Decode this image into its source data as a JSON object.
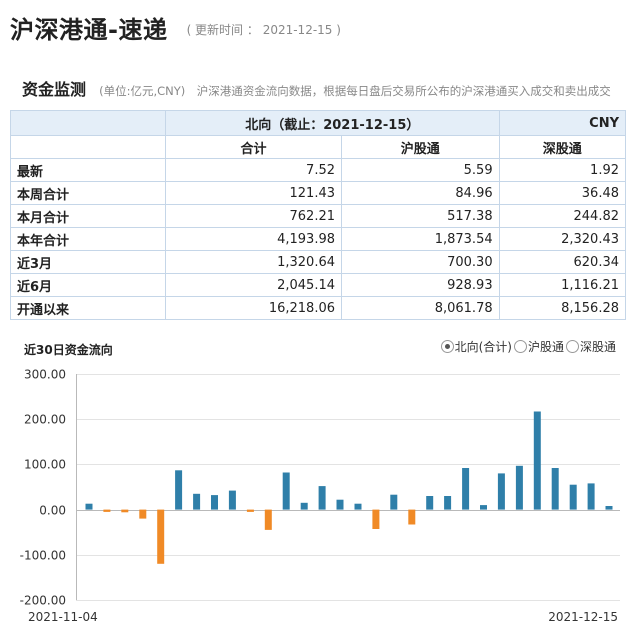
{
  "header": {
    "title": "沪深港通-速递",
    "update_label": "( 更新时间 ： 2021-12-15 )"
  },
  "section": {
    "title": "资金监测",
    "desc": "(单位:亿元,CNY)　沪深港通资金流向数据，根据每日盘后交易所公布的沪深港通买入成交和卖出成交"
  },
  "table": {
    "caption": "北向（截止：2021-12-15）",
    "currency": "CNY",
    "columns": [
      "合计",
      "沪股通",
      "深股通"
    ],
    "rows": [
      {
        "label": "最新",
        "values": [
          "7.52",
          "5.59",
          "1.92"
        ]
      },
      {
        "label": "本周合计",
        "values": [
          "121.43",
          "84.96",
          "36.48"
        ]
      },
      {
        "label": "本月合计",
        "values": [
          "762.21",
          "517.38",
          "244.82"
        ]
      },
      {
        "label": "本年合计",
        "values": [
          "4,193.98",
          "1,873.54",
          "2,320.43"
        ]
      },
      {
        "label": "近3月",
        "values": [
          "1,320.64",
          "700.30",
          "620.34"
        ]
      },
      {
        "label": "近6月",
        "values": [
          "2,045.14",
          "928.93",
          "1,116.21"
        ]
      },
      {
        "label": "开通以来",
        "values": [
          "16,218.06",
          "8,061.78",
          "8,156.28"
        ]
      }
    ]
  },
  "chart_title": "近30日资金流向",
  "legend": {
    "selected": 0,
    "options": [
      "北向(合计)",
      "沪股通",
      "深股通"
    ]
  },
  "colors": {
    "positive": "#2f7fa9",
    "negative": "#f08a26",
    "axis": "#b9b9b9",
    "grid": "#e3e3e3"
  },
  "chart_data": {
    "type": "bar",
    "title": "近30日资金流向",
    "x_start_label": "2021-11-04",
    "x_end_label": "2021-12-15",
    "ylim": [
      -200,
      300
    ],
    "yticks": [
      "300.00",
      "200.00",
      "100.00",
      "0.00",
      "-100.00",
      "-200.00"
    ],
    "grid": "horizontal",
    "values": [
      13,
      -5,
      -6,
      -20,
      -120,
      87,
      35,
      32,
      42,
      -5,
      -45,
      82,
      15,
      52,
      22,
      13,
      -43,
      33,
      -33,
      30,
      30,
      92,
      10,
      80,
      97,
      217,
      92,
      55,
      58,
      8
    ]
  }
}
